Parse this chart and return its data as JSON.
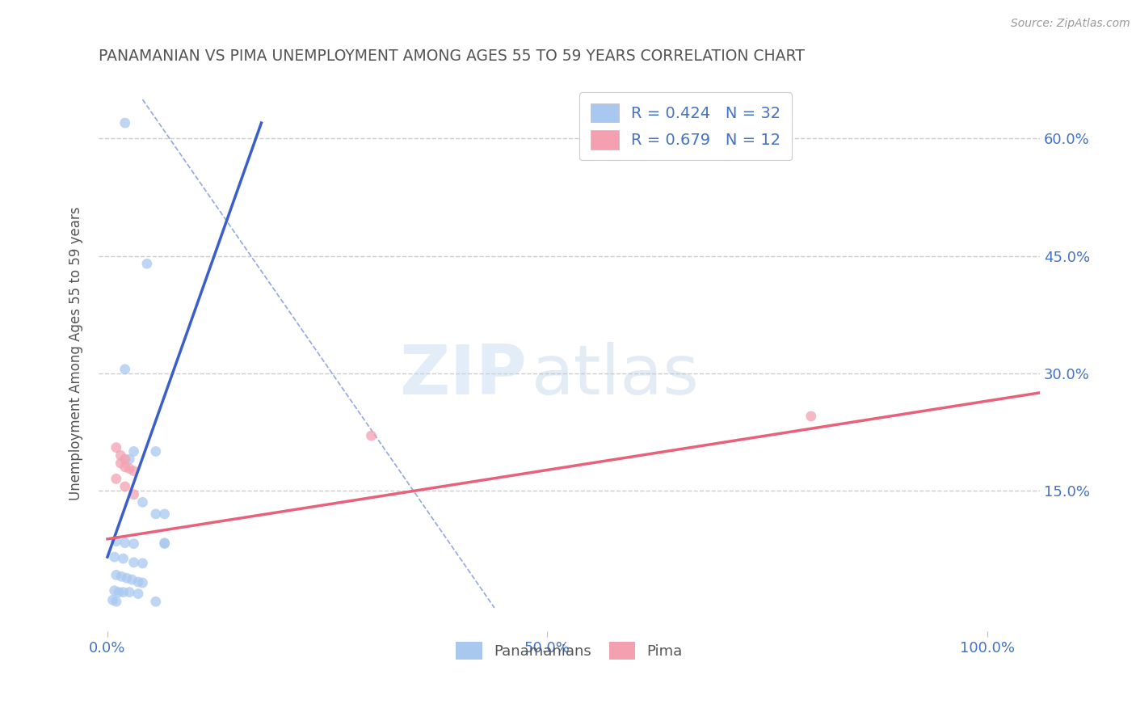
{
  "title": "PANAMANIAN VS PIMA UNEMPLOYMENT AMONG AGES 55 TO 59 YEARS CORRELATION CHART",
  "source": "Source: ZipAtlas.com",
  "ylabel": "Unemployment Among Ages 55 to 59 years",
  "ytick_labels": [
    "15.0%",
    "30.0%",
    "45.0%",
    "60.0%"
  ],
  "ytick_values": [
    0.15,
    0.3,
    0.45,
    0.6
  ],
  "xtick_labels": [
    "0.0%",
    "50.0%",
    "100.0%"
  ],
  "xtick_values": [
    0.0,
    0.5,
    1.0
  ],
  "xlim": [
    -0.01,
    1.06
  ],
  "ylim": [
    -0.03,
    0.68
  ],
  "legend_upper": [
    {
      "label": "R = 0.424   N = 32",
      "color": "#a8c8f0"
    },
    {
      "label": "R = 0.679   N = 12",
      "color": "#f4a0b0"
    }
  ],
  "legend_lower": [
    {
      "label": "Panamanians",
      "color": "#a8c8f0"
    },
    {
      "label": "Pima",
      "color": "#f4a0b0"
    }
  ],
  "panamanian_scatter": [
    [
      0.02,
      0.62
    ],
    [
      0.045,
      0.44
    ],
    [
      0.02,
      0.305
    ],
    [
      0.03,
      0.2
    ],
    [
      0.055,
      0.2
    ],
    [
      0.025,
      0.19
    ],
    [
      0.04,
      0.135
    ],
    [
      0.055,
      0.12
    ],
    [
      0.065,
      0.12
    ],
    [
      0.01,
      0.085
    ],
    [
      0.02,
      0.083
    ],
    [
      0.03,
      0.082
    ],
    [
      0.065,
      0.083
    ],
    [
      0.008,
      0.065
    ],
    [
      0.018,
      0.063
    ],
    [
      0.03,
      0.058
    ],
    [
      0.04,
      0.057
    ],
    [
      0.01,
      0.042
    ],
    [
      0.016,
      0.04
    ],
    [
      0.022,
      0.038
    ],
    [
      0.028,
      0.036
    ],
    [
      0.035,
      0.033
    ],
    [
      0.04,
      0.032
    ],
    [
      0.008,
      0.022
    ],
    [
      0.013,
      0.02
    ],
    [
      0.018,
      0.02
    ],
    [
      0.025,
      0.02
    ],
    [
      0.035,
      0.018
    ],
    [
      0.055,
      0.008
    ],
    [
      0.006,
      0.01
    ],
    [
      0.01,
      0.008
    ],
    [
      0.065,
      0.082
    ]
  ],
  "pima_scatter": [
    [
      0.01,
      0.205
    ],
    [
      0.015,
      0.195
    ],
    [
      0.02,
      0.19
    ],
    [
      0.015,
      0.185
    ],
    [
      0.02,
      0.18
    ],
    [
      0.025,
      0.178
    ],
    [
      0.03,
      0.175
    ],
    [
      0.01,
      0.165
    ],
    [
      0.02,
      0.155
    ],
    [
      0.03,
      0.145
    ],
    [
      0.8,
      0.245
    ],
    [
      0.3,
      0.22
    ]
  ],
  "blue_solid_line": {
    "x": [
      0.0,
      0.175
    ],
    "y": [
      0.065,
      0.62
    ]
  },
  "blue_dash_line": {
    "x": [
      0.04,
      0.44
    ],
    "y": [
      0.65,
      0.0
    ]
  },
  "pink_line": {
    "x": [
      0.0,
      1.06
    ],
    "y": [
      0.088,
      0.275
    ]
  },
  "blue_line_color": "#3a5fcd",
  "pink_line_color": "#e8607a",
  "scatter_blue_color": "#a8c8f0",
  "scatter_pink_color": "#f4a0b0",
  "scatter_alpha": 0.75,
  "scatter_size": 85,
  "watermark_zip": "ZIP",
  "watermark_atlas": "atlas",
  "background_color": "#ffffff",
  "grid_color": "#cccccc",
  "title_color": "#555555",
  "axis_label_color": "#555555",
  "tick_color": "#4472c4"
}
